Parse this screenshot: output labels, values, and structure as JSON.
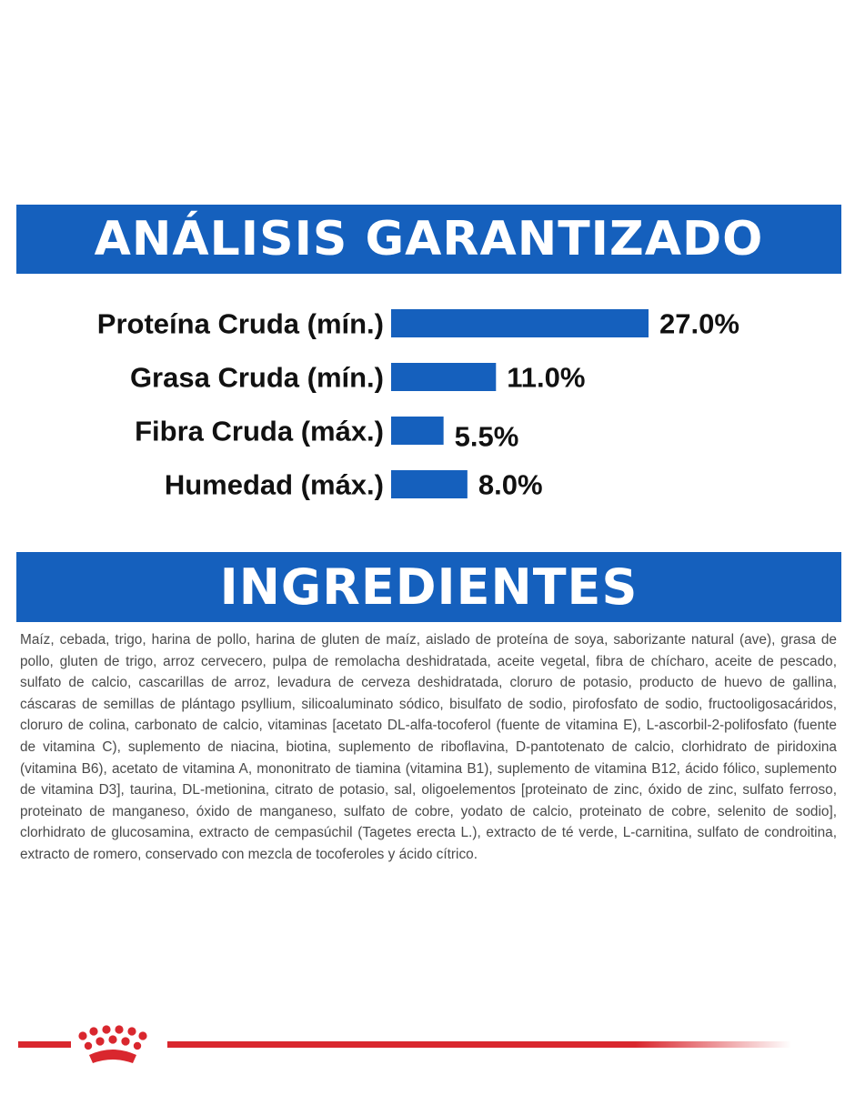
{
  "banners": {
    "analysis": "ANÁLISIS GARANTIZADO",
    "ingredients": "INGREDIENTES"
  },
  "chart_data": {
    "type": "bar",
    "orientation": "horizontal",
    "categories": [
      "Proteína Cruda (mín.)",
      "Grasa Cruda (mín.)",
      "Fibra Cruda (máx.)",
      "Humedad (máx.)"
    ],
    "values": [
      27.0,
      11.0,
      5.5,
      8.0
    ],
    "value_labels": [
      "27.0%",
      "11.0%",
      "5.5%",
      "8.0%"
    ],
    "unit": "%",
    "xlim": [
      0,
      27.0
    ],
    "grid": false,
    "bar_color": "#1560bd"
  },
  "ingredients": {
    "text": "Maíz, cebada, trigo, harina de pollo, harina de gluten de maíz, aislado de proteína de soya, saborizante natural (ave), grasa de pollo, gluten de trigo, arroz cervecero, pulpa de remolacha deshidratada, aceite vegetal, fibra de chícharo, aceite de pescado, sulfato de calcio, cascarillas de arroz, levadura de cerveza deshidratada, cloruro de potasio, producto de huevo de gallina, cáscaras de semillas de plántago psyllium, silicoaluminato sódico, bisulfato de sodio, pirofosfato de sodio, fructooligosacáridos, cloruro de colina, carbonato de calcio, vitaminas [acetato DL-alfa-tocoferol (fuente de vitamina E), L-ascorbil-2-polifosfato (fuente de vitamina C), suplemento de niacina, biotina, suplemento de riboflavina, D-pantotenato de calcio, clorhidrato de piridoxina (vitamina B6), acetato de vitamina A, mononitrato de tiamina (vitamina B1), suplemento de vitamina B12, ácido fólico, suplemento de vitamina D3], taurina, DL-metionina, citrato de potasio, sal, oligoelementos [proteinato de zinc, óxido de zinc, sulfato ferroso, proteinato de manganeso, óxido de manganeso, sulfato de cobre, yodato de calcio, proteinato de cobre, selenito de sodio], clorhidrato de glucosamina, extracto de cempasúchil (Tagetes erecta L.), extracto de té verde, L-carnitina, sulfato de condroitina, extracto de romero, conservado con mezcla de tocoferoles y ácido cítrico."
  },
  "footer": {
    "logo_icon": "crown-icon",
    "accent_color": "#d9272e"
  }
}
